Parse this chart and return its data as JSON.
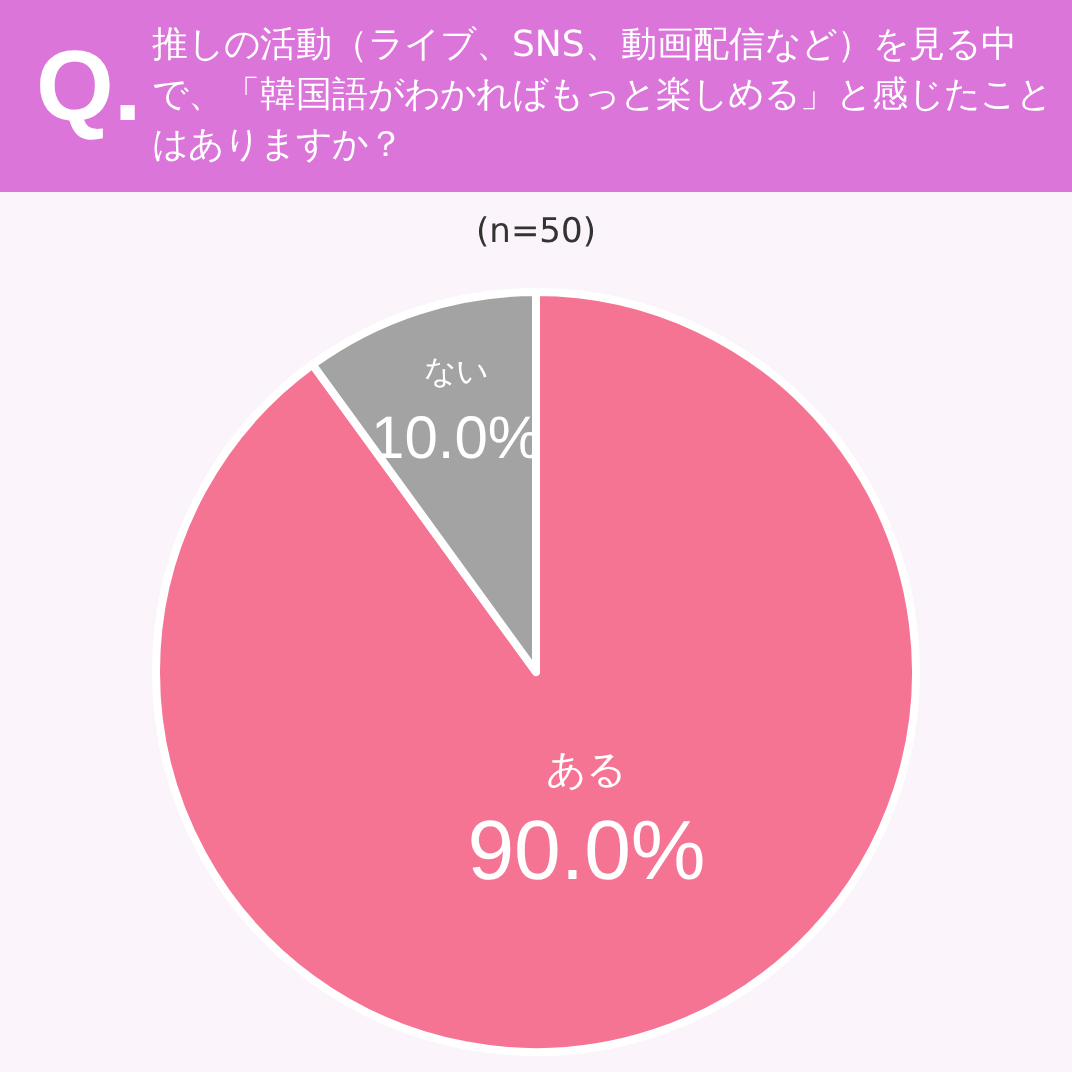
{
  "chart_data": {
    "type": "pie",
    "title": "推しの活動（ライブ、SNS、動画配信など）を見る中で、「韓国語がわかればもっと楽しめる」と感じたことはありますか？",
    "subtitle": "(n=50)",
    "annotations": [
      "Q."
    ],
    "categories": [
      "ある",
      "ない"
    ],
    "values": [
      90.0,
      10.0
    ],
    "value_labels": [
      "90.0%",
      "10.0%"
    ],
    "colors": [
      "#f57493",
      "#a3a3a3"
    ]
  }
}
